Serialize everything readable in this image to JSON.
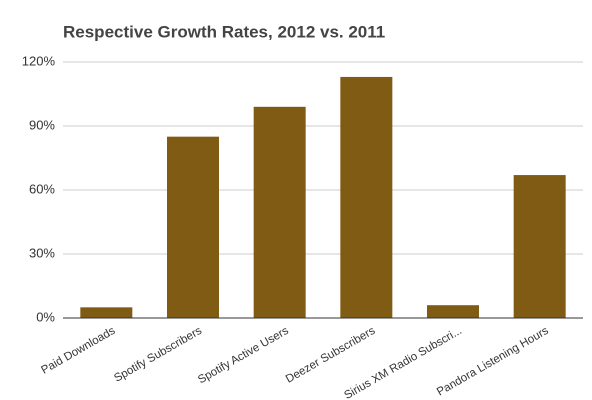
{
  "chart_data": {
    "type": "bar",
    "title": "Respective Growth Rates, 2012 vs. 2011",
    "categories": [
      "Paid Downloads",
      "Spotify Subscribers",
      "Spotify Active Users",
      "Deezer Subscribers",
      "Sirius XM Radio Subscri...",
      "Pandora Listening Hours"
    ],
    "values": [
      5,
      85,
      99,
      113,
      6,
      67
    ],
    "color": "#7f5b14",
    "ylim": [
      0,
      120
    ],
    "yticks": [
      {
        "value": 0,
        "label": "0%"
      },
      {
        "value": 30,
        "label": "30%"
      },
      {
        "value": 60,
        "label": "60%"
      },
      {
        "value": 90,
        "label": "90%"
      },
      {
        "value": 120,
        "label": "120%"
      }
    ],
    "grid": true
  }
}
